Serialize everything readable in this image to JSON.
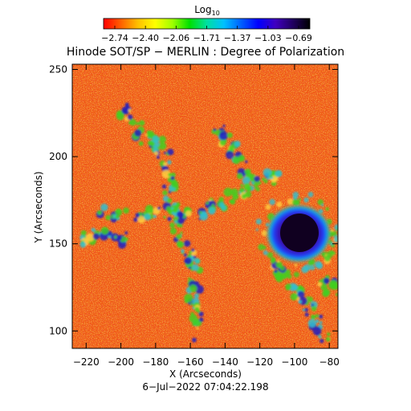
{
  "colorbar": {
    "label_base": "Log",
    "label_sub": "10",
    "ticks": [
      "−2.74",
      "−2.40",
      "−2.06",
      "−1.71",
      "−1.37",
      "−1.03",
      "−0.69"
    ],
    "colors": [
      "#ff0000",
      "#ff6000",
      "#ffc000",
      "#ffff00",
      "#a0ff00",
      "#00e000",
      "#00e0a0",
      "#00c0ff",
      "#0060ff",
      "#0000ff",
      "#4000c0",
      "#200060",
      "#000000"
    ]
  },
  "title": "Hinode SOT/SP − MERLIN : Degree of Polarization",
  "x_axis": {
    "label": "X (Arcseconds)",
    "range": [
      -228,
      -75
    ],
    "ticks": [
      -220,
      -200,
      -180,
      -160,
      -140,
      -120,
      -100,
      -80
    ],
    "tick_labels": [
      "−220",
      "−200",
      "−180",
      "−160",
      "−140",
      "−120",
      "−100",
      "−80"
    ]
  },
  "y_axis": {
    "label": "Y (Arcseconds)",
    "range": [
      90,
      253
    ],
    "ticks": [
      100,
      150,
      200,
      250
    ],
    "tick_labels": [
      "100",
      "150",
      "200",
      "250"
    ]
  },
  "timestamp": "6−Jul−2022 07:04:22.198",
  "map_colors": {
    "background": "#f05a14",
    "speckle_red": "#e41e10",
    "speckle_orange": "#ff7a10",
    "speckle_yellow": "#ffd040",
    "network_green": "#40d020",
    "network_cyan": "#30c0d0",
    "network_blue": "#2020c0",
    "sunspot_penumbra": "#5010c0",
    "sunspot_umbra": "#100020"
  }
}
